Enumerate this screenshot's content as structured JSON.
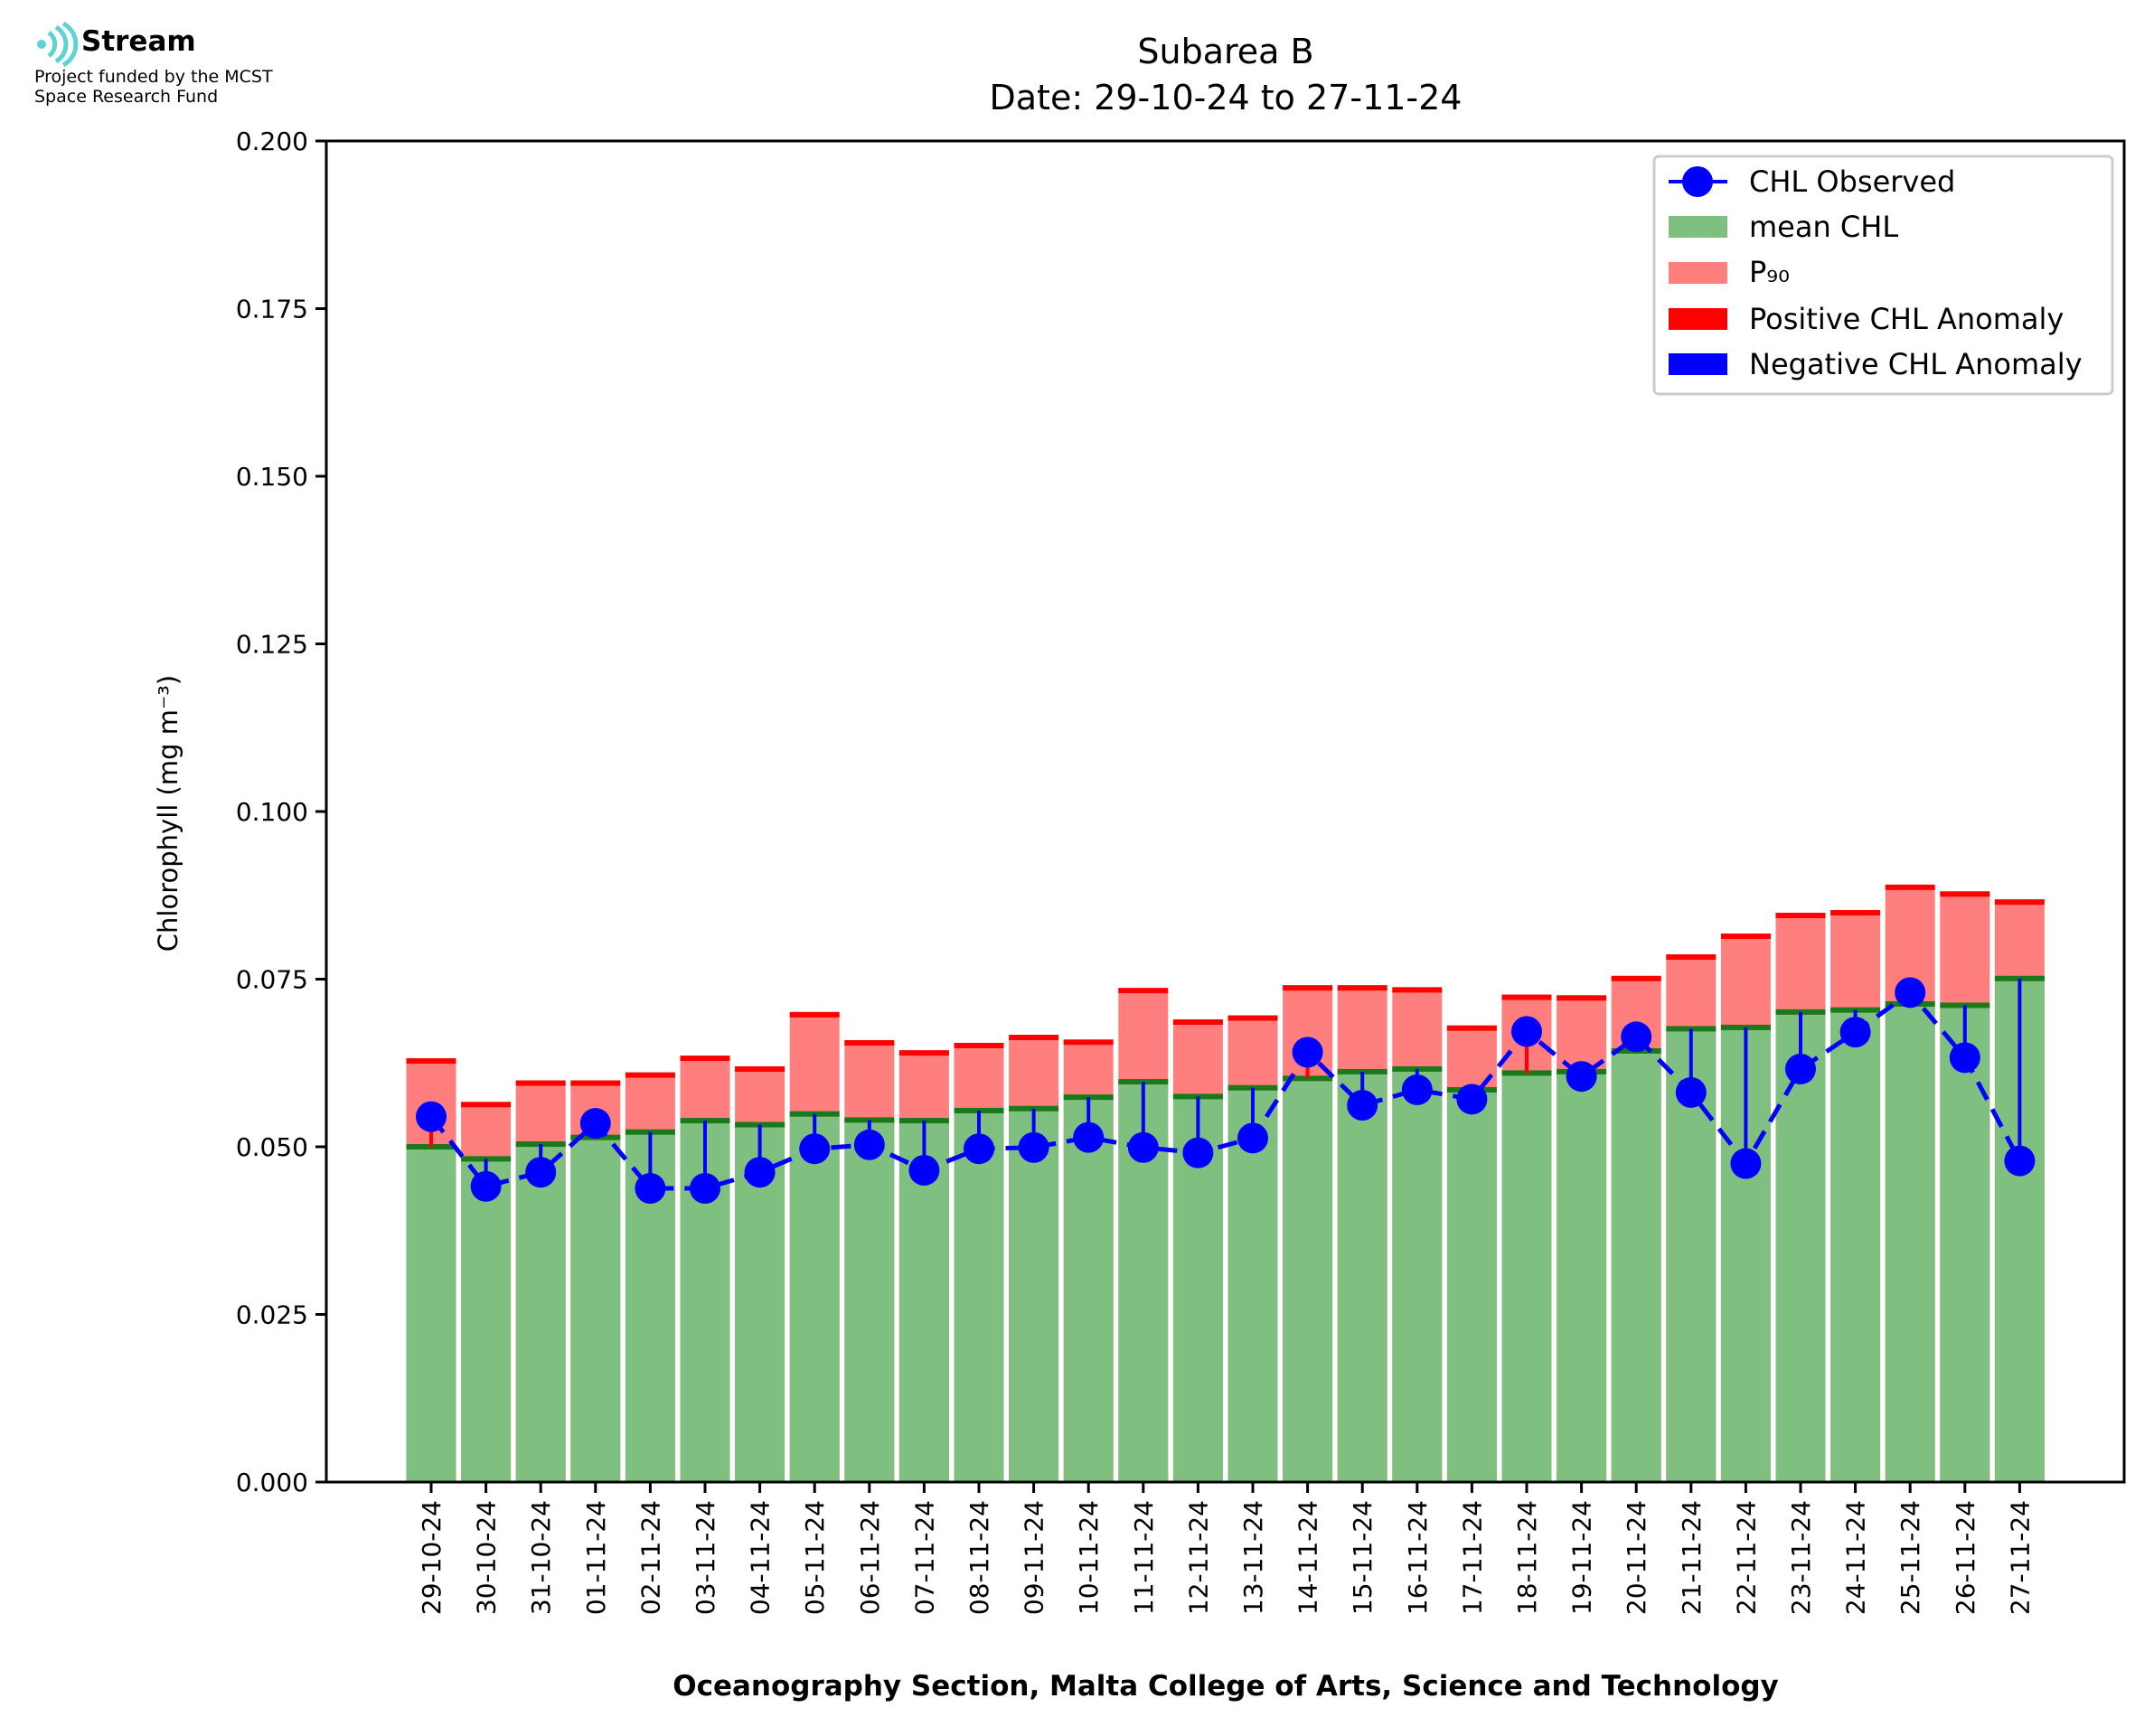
{
  "logo": {
    "name": "Stream",
    "line1": "Project funded by the MCST",
    "line2": "Space Research Fund"
  },
  "chart_data": {
    "type": "bar",
    "title": "Subarea B",
    "subtitle": "Date: 29-10-24 to 27-11-24",
    "xlabel": "Oceanography Section, Malta College of Arts, Science and Technology",
    "ylabel": "Chlorophyll (mg m⁻³)",
    "ylim": [
      0,
      0.2
    ],
    "yticks": [
      "0.000",
      "0.025",
      "0.050",
      "0.075",
      "0.100",
      "0.125",
      "0.150",
      "0.175",
      "0.200"
    ],
    "categories": [
      "29-10-24",
      "30-10-24",
      "31-10-24",
      "01-11-24",
      "02-11-24",
      "03-11-24",
      "04-11-24",
      "05-11-24",
      "06-11-24",
      "07-11-24",
      "08-11-24",
      "09-11-24",
      "10-11-24",
      "11-11-24",
      "12-11-24",
      "13-11-24",
      "14-11-24",
      "15-11-24",
      "16-11-24",
      "17-11-24",
      "18-11-24",
      "19-11-24",
      "20-11-24",
      "21-11-24",
      "22-11-24",
      "23-11-24",
      "24-11-24",
      "25-11-24",
      "26-11-24",
      "27-11-24"
    ],
    "series": [
      {
        "name": "CHL Observed",
        "color": "#0000ff",
        "values": [
          0.0545,
          0.0441,
          0.0462,
          0.0535,
          0.0438,
          0.0438,
          0.0462,
          0.0497,
          0.0503,
          0.0465,
          0.0497,
          0.0499,
          0.0514,
          0.0499,
          0.0491,
          0.0513,
          0.0641,
          0.0562,
          0.0585,
          0.0571,
          0.0672,
          0.0605,
          0.0664,
          0.0581,
          0.0475,
          0.0616,
          0.0671,
          0.073,
          0.0633,
          0.0479
        ]
      },
      {
        "name": "mean CHL",
        "color": "#7fbf7f",
        "values": [
          0.05,
          0.0482,
          0.0504,
          0.0514,
          0.0522,
          0.0539,
          0.0533,
          0.0549,
          0.054,
          0.0539,
          0.0554,
          0.0557,
          0.0574,
          0.0597,
          0.0575,
          0.0588,
          0.0602,
          0.0612,
          0.0616,
          0.0585,
          0.061,
          0.0612,
          0.0643,
          0.0676,
          0.0678,
          0.0701,
          0.0704,
          0.0713,
          0.0711,
          0.0751
        ]
      },
      {
        "name": "P₉₀",
        "color": "#ff7f7f",
        "values": [
          0.0628,
          0.0563,
          0.0595,
          0.0595,
          0.0607,
          0.0632,
          0.0616,
          0.0697,
          0.0655,
          0.064,
          0.0651,
          0.0663,
          0.0656,
          0.0733,
          0.0686,
          0.0692,
          0.0737,
          0.0737,
          0.0734,
          0.0677,
          0.0723,
          0.0722,
          0.0751,
          0.0783,
          0.0814,
          0.0845,
          0.0849,
          0.0887,
          0.0877,
          0.0865
        ]
      }
    ],
    "legend": {
      "position": "top-right",
      "entries": [
        "CHL Observed",
        "mean CHL",
        "P₉₀",
        "Positive CHL Anomaly",
        "Negative CHL Anomaly"
      ],
      "colors": [
        "#0000ff",
        "#7fbf7f",
        "#ff7f7f",
        "#ff0000",
        "#0000ff"
      ]
    },
    "grid": false
  }
}
